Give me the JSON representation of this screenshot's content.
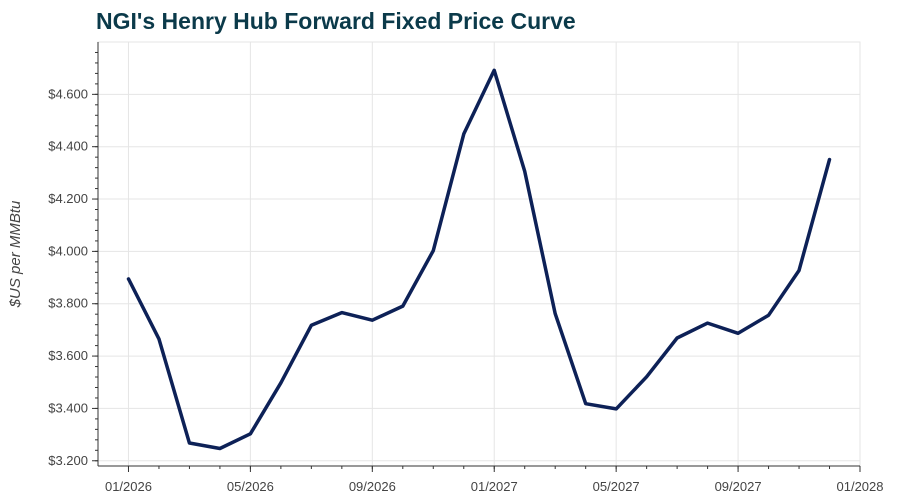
{
  "chart_data": {
    "type": "line",
    "title": "NGI's Henry Hub Forward Fixed Price Curve",
    "xlabel": "",
    "ylabel": "$US per MMBtu",
    "x_tick_labels": [
      "01/2026",
      "05/2026",
      "09/2026",
      "01/2027",
      "05/2027",
      "09/2027",
      "01/2028"
    ],
    "y_tick_labels": [
      "$3.200",
      "$3.400",
      "$3.600",
      "$3.800",
      "$4.000",
      "$4.200",
      "$4.400",
      "$4.600"
    ],
    "y_ticks": [
      3.2,
      3.4,
      3.6,
      3.8,
      4.0,
      4.2,
      4.4,
      4.6
    ],
    "ylim": [
      3.18,
      4.8
    ],
    "xlim": [
      "2025-12",
      "2028-01"
    ],
    "grid": true,
    "line_color": "#0d2157",
    "series": [
      {
        "x": [
          "2026-01",
          "2026-02",
          "2026-03",
          "2026-04",
          "2026-05",
          "2026-06",
          "2026-07",
          "2026-08",
          "2026-09",
          "2026-10",
          "2026-11",
          "2026-12",
          "2027-01",
          "2027-02",
          "2027-03",
          "2027-04",
          "2027-05",
          "2027-06",
          "2027-07",
          "2027-08",
          "2027-09",
          "2027-10",
          "2027-11",
          "2027-12"
        ],
        "values": [
          3.895,
          3.665,
          3.268,
          3.247,
          3.303,
          3.498,
          3.718,
          3.766,
          3.737,
          3.791,
          4.003,
          4.449,
          4.692,
          4.306,
          3.762,
          3.418,
          3.398,
          3.521,
          3.669,
          3.726,
          3.687,
          3.756,
          3.927,
          4.351
        ]
      }
    ]
  }
}
